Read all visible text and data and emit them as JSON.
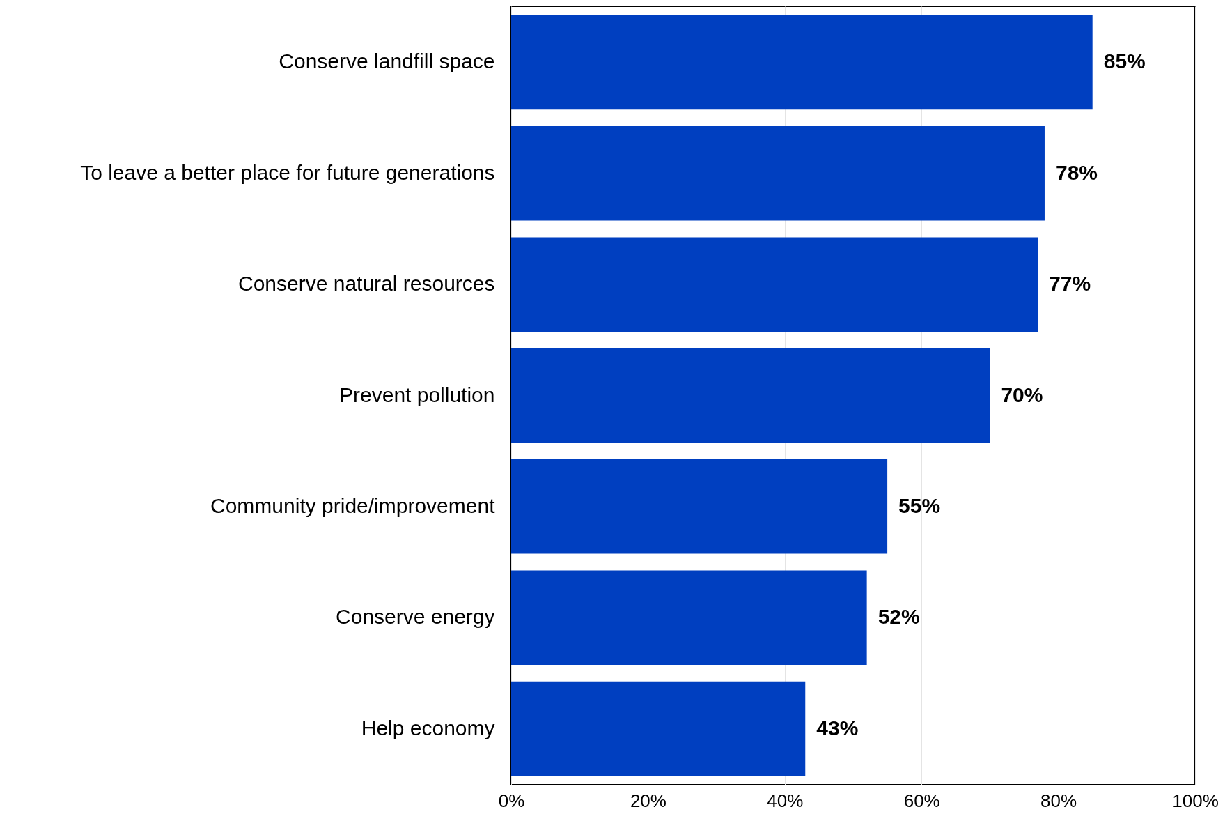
{
  "chart_data": {
    "type": "bar",
    "orientation": "horizontal",
    "categories": [
      "Conserve landfill space",
      "To leave a better place for future generations",
      "Conserve natural resources",
      "Prevent pollution",
      "Community pride/improvement",
      "Conserve energy",
      "Help economy"
    ],
    "values": [
      85,
      78,
      77,
      70,
      55,
      52,
      43
    ],
    "value_labels": [
      "85%",
      "78%",
      "77%",
      "70%",
      "55%",
      "52%",
      "43%"
    ],
    "color": "#003fc0",
    "xlim": [
      0,
      100
    ],
    "xticks": [
      {
        "value": 0,
        "label": "0%"
      },
      {
        "value": 20,
        "label": "20%"
      },
      {
        "value": 40,
        "label": "40%"
      },
      {
        "value": 60,
        "label": "60%"
      },
      {
        "value": 80,
        "label": "80%"
      },
      {
        "value": 100,
        "label": "100%"
      }
    ],
    "grid": "x"
  }
}
